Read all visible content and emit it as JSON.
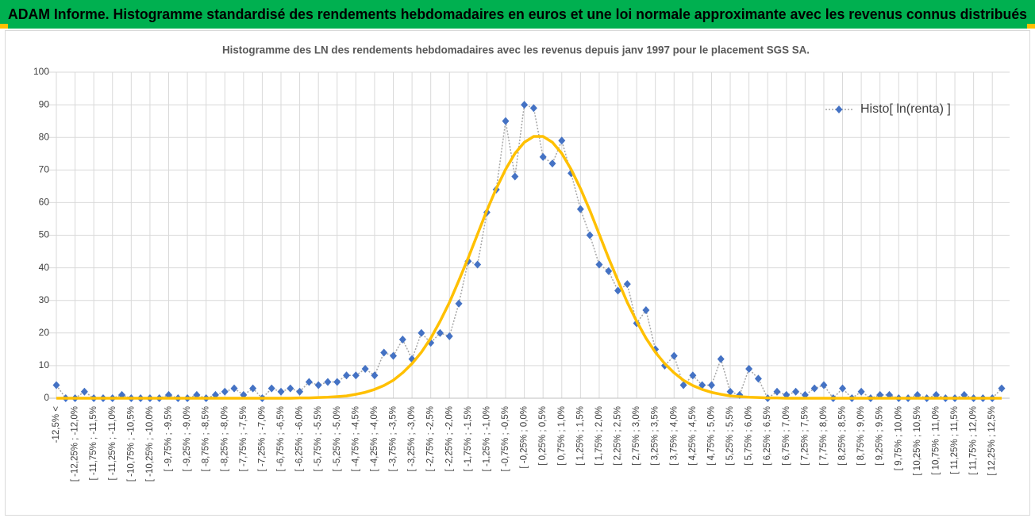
{
  "chart_data": {
    "type": "line",
    "title": "ADAM Informe. Histogramme standardisé des rendements hebdomadaires en euros et une loi normale approximante avec les revenus connus distribués",
    "subtitle": "Histogramme des LN des rendements hebdomadaires avec les revenus depuis janv 1997 pour le placement SGS SA.",
    "categories": [
      "-12,5% <",
      null,
      "[ -12,25% ; -12,0%",
      null,
      "[ -11,75% ; -11,5%",
      null,
      "[ -11,25% ; -11,0%",
      null,
      "[ -10,75% ; -10,5%",
      null,
      "[ -10,25% ; -10,0%",
      null,
      "[ -9,75% ; -9,5%",
      null,
      "[ -9,25% ; -9,0%",
      null,
      "[ -8,75% ; -8,5%",
      null,
      "[ -8,25% ; -8,0%",
      null,
      "[ -7,75% ; -7,5%",
      null,
      "[ -7,25% ; -7,0%",
      null,
      "[ -6,75% ; -6,5%",
      null,
      "[ -6,25% ; -6,0%",
      null,
      "[ -5,75% ; -5,5%",
      null,
      "[ -5,25% ; -5,0%",
      null,
      "[ -4,75% ; -4,5%",
      null,
      "[ -4,25% ; -4,0%",
      null,
      "[ -3,75% ; -3,5%",
      null,
      "[ -3,25% ; -3,0%",
      null,
      "[ -2,75% ; -2,5%",
      null,
      "[ -2,25% ; -2,0%",
      null,
      "[ -1,75% ; -1,5%",
      null,
      "[ -1,25% ; -1,0%",
      null,
      "[ -0,75% ; -0,5%",
      null,
      "[ -0,25% ; 0,0%",
      null,
      "[ 0,25% ; 0,5%",
      null,
      "[ 0,75% ; 1,0%",
      null,
      "[ 1,25% ; 1,5%",
      null,
      "[ 1,75% ; 2,0%",
      null,
      "[ 2,25% ; 2,5%",
      null,
      "[ 2,75% ; 3,0%",
      null,
      "[ 3,25% ; 3,5%",
      null,
      "[ 3,75% ; 4,0%",
      null,
      "[ 4,25% ; 4,5%",
      null,
      "[ 4,75% ; 5,0%",
      null,
      "[ 5,25% ; 5,5%",
      null,
      "[ 5,75% ; 6,0%",
      null,
      "[ 6,25% ; 6,5%",
      null,
      "[ 6,75% ; 7,0%",
      null,
      "[ 7,25% ; 7,5%",
      null,
      "[ 7,75% ; 8,0%",
      null,
      "[ 8,25% ; 8,5%",
      null,
      "[ 8,75% ; 9,0%",
      null,
      "[ 9,25% ; 9,5%",
      null,
      "[ 9,75% ; 10,0%",
      null,
      "[ 10,25% ; 10,5%",
      null,
      "[ 10,75% ; 11,0%",
      null,
      "[ 11,25% ; 11,5%",
      null,
      "[ 11,75% ; 12,0%",
      null,
      "[ 12,25% ; 12,5%",
      null
    ],
    "series": [
      {
        "name": "Histo[ ln(renta) ]",
        "color": "#4472c4",
        "line_color": "#a6a6a6",
        "values": [
          4,
          0,
          0,
          2,
          0,
          0,
          0,
          1,
          0,
          0,
          0,
          0,
          1,
          0,
          0,
          1,
          0,
          1,
          2,
          3,
          1,
          3,
          0,
          3,
          2,
          3,
          2,
          5,
          4,
          5,
          5,
          7,
          7,
          9,
          7,
          14,
          13,
          18,
          12,
          20,
          17,
          20,
          19,
          29,
          42,
          41,
          57,
          64,
          85,
          68,
          90,
          89,
          74,
          72,
          79,
          69,
          58,
          50,
          41,
          39,
          33,
          35,
          23,
          27,
          15,
          10,
          13,
          4,
          7,
          4,
          4,
          12,
          2,
          1,
          9,
          6,
          0,
          2,
          1,
          2,
          1,
          3,
          4,
          0,
          3,
          0,
          2,
          0,
          1,
          1,
          0,
          0,
          1,
          0,
          1,
          0,
          0,
          1,
          0,
          0,
          0,
          3
        ]
      },
      {
        "color": "#ffc000",
        "values": [
          0,
          0,
          0,
          0,
          0,
          0,
          0,
          0,
          0,
          0,
          0,
          0,
          0,
          0,
          0,
          0,
          0,
          0,
          0,
          0,
          0,
          0,
          0,
          0,
          0,
          0,
          0.1,
          0.1,
          0.2,
          0.3,
          0.5,
          0.7,
          1.2,
          1.8,
          2.7,
          3.9,
          5.5,
          7.8,
          10.6,
          14.1,
          18.4,
          23.6,
          29.4,
          36.1,
          43.0,
          50.3,
          57.6,
          64.3,
          70.2,
          75.1,
          78.5,
          80.3,
          80.3,
          78.5,
          75.1,
          70.2,
          64.3,
          57.6,
          50.3,
          43.0,
          36.1,
          29.4,
          23.6,
          18.4,
          14.1,
          10.6,
          7.8,
          5.5,
          3.9,
          2.7,
          1.8,
          1.2,
          0.7,
          0.5,
          0.3,
          0.2,
          0.1,
          0.1,
          0,
          0,
          0,
          0,
          0,
          0,
          0,
          0,
          0,
          0,
          0,
          0,
          0,
          0,
          0,
          0,
          0,
          0,
          0,
          0,
          0,
          0,
          0,
          0
        ]
      }
    ],
    "ylim": [
      0,
      100
    ],
    "yticks": [
      0,
      10,
      20,
      30,
      40,
      50,
      60,
      70,
      80,
      90,
      100
    ],
    "grid": true,
    "legend": "upper right"
  }
}
